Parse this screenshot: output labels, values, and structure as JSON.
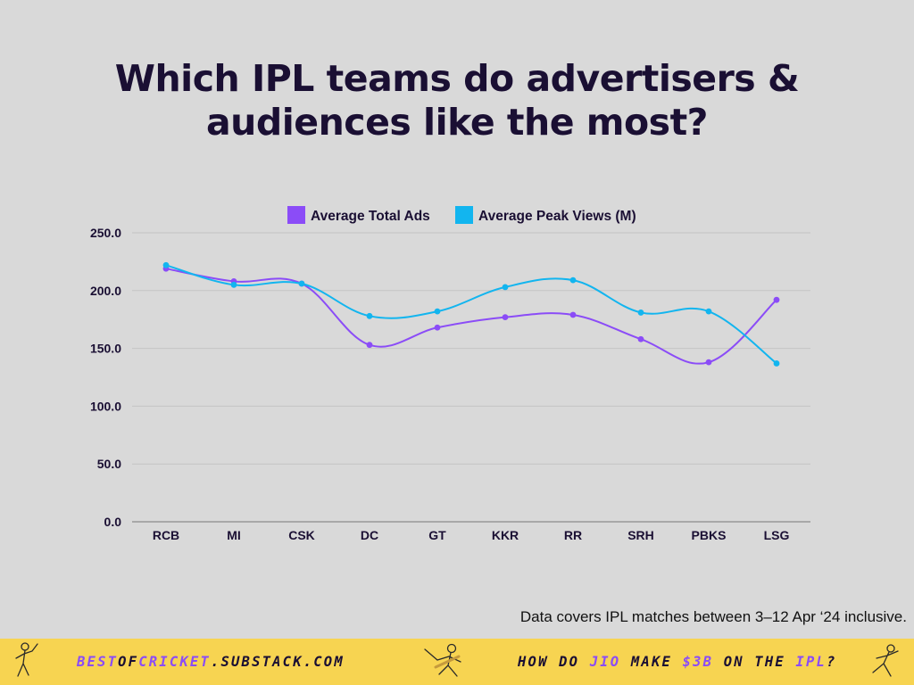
{
  "title_line1": "Which IPL teams do advertisers &",
  "title_line2": "audiences like the most?",
  "note": "Data covers IPL matches between 3–12 Apr ‘24 inclusive.",
  "footer": {
    "url_parts": [
      "BEST",
      "OF",
      "CRICKET",
      ".SUBSTACK.COM"
    ],
    "tag_parts": [
      "HOW DO ",
      "JIO",
      " MAKE ",
      "$3B",
      " ON THE ",
      "IPL",
      "?"
    ],
    "highlight_color": "#8b4cf7",
    "background": "#f7d451"
  },
  "chart_data": {
    "type": "line",
    "title": "Which IPL teams do advertisers & audiences like the most?",
    "categories": [
      "RCB",
      "MI",
      "CSK",
      "DC",
      "GT",
      "KKR",
      "RR",
      "SRH",
      "PBKS",
      "LSG"
    ],
    "series": [
      {
        "name": "Average Total Ads",
        "color": "#8b4cf7",
        "values": [
          219,
          208,
          206,
          153,
          168,
          177,
          179,
          158,
          138,
          192
        ]
      },
      {
        "name": "Average Peak Views (M)",
        "color": "#12b5ef",
        "values": [
          222,
          205,
          206,
          178,
          182,
          203,
          209,
          181,
          182,
          137
        ]
      }
    ],
    "y_ticks": [
      "0.0",
      "50.0",
      "100.0",
      "150.0",
      "200.0",
      "250.0"
    ],
    "ylim": [
      0,
      250
    ],
    "grid": true,
    "legend_position": "top-center",
    "smooth": true
  }
}
